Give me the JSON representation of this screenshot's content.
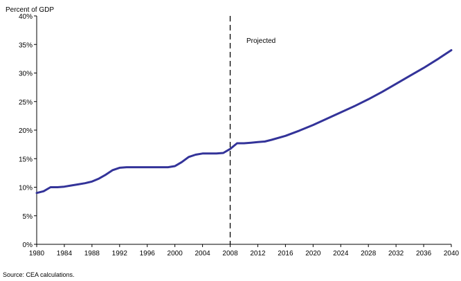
{
  "chart_data": {
    "type": "line",
    "ylabel": "Percent of GDP",
    "annotation": "Projected",
    "divider_x": 2008,
    "xlim": [
      1980,
      2040
    ],
    "ylim": [
      0,
      40
    ],
    "x_ticks": [
      "1980",
      "1984",
      "1988",
      "1992",
      "1996",
      "2000",
      "2004",
      "2008",
      "2012",
      "2016",
      "2020",
      "2024",
      "2028",
      "2032",
      "2036",
      "2040"
    ],
    "y_ticks": [
      "0%",
      "5%",
      "10%",
      "15%",
      "20%",
      "25%",
      "30%",
      "35%",
      "40%"
    ],
    "grid": false,
    "legend": "none",
    "line_color": "#333399",
    "series": [
      {
        "x": [
          1980,
          1981,
          1982,
          1983,
          1984,
          1985,
          1986,
          1987,
          1988,
          1989,
          1990,
          1991,
          1992,
          1993,
          1994,
          1995,
          1996,
          1997,
          1998,
          1999,
          2000,
          2001,
          2002,
          2003,
          2004,
          2005,
          2006,
          2007,
          2008,
          2009,
          2010,
          2011,
          2012,
          2013,
          2014,
          2016,
          2018,
          2020,
          2022,
          2024,
          2026,
          2028,
          2030,
          2032,
          2034,
          2036,
          2038,
          2040
        ],
        "values": [
          9.0,
          9.3,
          10.0,
          10.0,
          10.1,
          10.3,
          10.5,
          10.7,
          11.0,
          11.5,
          12.2,
          13.0,
          13.4,
          13.5,
          13.5,
          13.5,
          13.5,
          13.5,
          13.5,
          13.5,
          13.7,
          14.4,
          15.3,
          15.7,
          15.9,
          15.9,
          15.9,
          16.0,
          16.7,
          17.7,
          17.7,
          17.8,
          17.9,
          18.0,
          18.3,
          19.0,
          19.9,
          20.9,
          22.0,
          23.1,
          24.2,
          25.4,
          26.7,
          28.1,
          29.5,
          30.9,
          32.4,
          34.0
        ]
      }
    ]
  },
  "source_note": "Source: CEA calculations."
}
